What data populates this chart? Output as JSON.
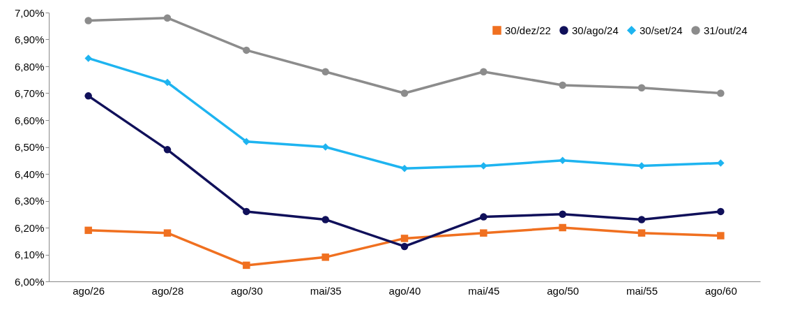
{
  "chart_data": {
    "type": "line",
    "categories": [
      "ago/26",
      "ago/28",
      "ago/30",
      "mai/35",
      "ago/40",
      "mai/45",
      "ago/50",
      "mai/55",
      "ago/60"
    ],
    "series": [
      {
        "name": "30/dez/22",
        "color": "#f07020",
        "marker": "square",
        "values": [
          6.19,
          6.18,
          6.06,
          6.09,
          6.16,
          6.18,
          6.2,
          6.18,
          6.17
        ]
      },
      {
        "name": "30/ago/24",
        "color": "#10105a",
        "marker": "circle",
        "values": [
          6.69,
          6.49,
          6.26,
          6.23,
          6.13,
          6.24,
          6.25,
          6.23,
          6.26
        ]
      },
      {
        "name": "30/set/24",
        "color": "#1eb4f0",
        "marker": "diamond",
        "values": [
          6.83,
          6.74,
          6.52,
          6.5,
          6.42,
          6.43,
          6.45,
          6.43,
          6.44
        ]
      },
      {
        "name": "31/out/24",
        "color": "#8c8c8c",
        "marker": "circle",
        "values": [
          6.97,
          6.98,
          6.86,
          6.78,
          6.7,
          6.78,
          6.73,
          6.72,
          6.7
        ]
      }
    ],
    "ylim": [
      6,
      7
    ],
    "yticks": [
      {
        "value": 6,
        "label": "6,00%"
      },
      {
        "value": 6.1,
        "label": "6,10%"
      },
      {
        "value": 6.2,
        "label": "6,20%"
      },
      {
        "value": 6.3,
        "label": "6,30%"
      },
      {
        "value": 6.4,
        "label": "6,40%"
      },
      {
        "value": 6.5,
        "label": "6,50%"
      },
      {
        "value": 6.6,
        "label": "6,60%"
      },
      {
        "value": 6.7,
        "label": "6,70%"
      },
      {
        "value": 6.8,
        "label": "6,80%"
      },
      {
        "value": 6.9,
        "label": "6,90%"
      },
      {
        "value": 7,
        "label": "7,00%"
      }
    ],
    "grid": false,
    "legend": "top right",
    "line_style": "solid"
  }
}
